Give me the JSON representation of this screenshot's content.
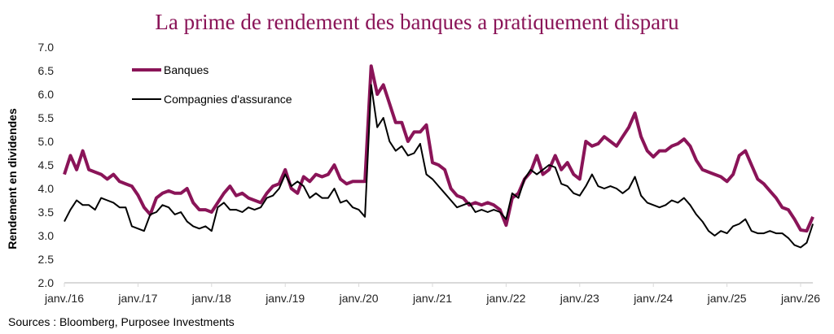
{
  "chart_data": {
    "type": "line",
    "title": "La prime de rendement des banques a pratiquement disparu",
    "xlabel": "",
    "ylabel": "Rendement en dividendes",
    "ylim": [
      2.0,
      7.0
    ],
    "yticks": [
      "2.0",
      "2.5",
      "3.0",
      "3.5",
      "4.0",
      "4.5",
      "5.0",
      "5.5",
      "6.0",
      "6.5",
      "7.0"
    ],
    "xticks": [
      {
        "date": "2016-01",
        "label": "janv./16"
      },
      {
        "date": "2017-01",
        "label": "janv./17"
      },
      {
        "date": "2018-01",
        "label": "janv./18"
      },
      {
        "date": "2019-01",
        "label": "janv./19"
      },
      {
        "date": "2020-01",
        "label": "janv./20"
      },
      {
        "date": "2021-01",
        "label": "janv./21"
      },
      {
        "date": "2022-01",
        "label": "janv./22"
      },
      {
        "date": "2023-01",
        "label": "janv./23"
      },
      {
        "date": "2024-01",
        "label": "janv./24"
      },
      {
        "date": "2025-01",
        "label": "janv./25"
      },
      {
        "date": "2026-01",
        "label": "janv./26"
      }
    ],
    "xlim": [
      "2016-01",
      "2026-03"
    ],
    "grid": false,
    "legend": "top-left",
    "x_start": "2016-01",
    "x_frequency": "monthly",
    "series": [
      {
        "name": "Banques",
        "color": "#8a1458",
        "values": [
          4.3,
          4.7,
          4.4,
          4.8,
          4.4,
          4.35,
          4.3,
          4.2,
          4.3,
          4.15,
          4.1,
          4.05,
          3.86,
          3.6,
          3.45,
          3.8,
          3.9,
          3.95,
          3.9,
          3.9,
          4.0,
          3.7,
          3.55,
          3.55,
          3.5,
          3.7,
          3.9,
          4.05,
          3.85,
          3.9,
          3.8,
          3.75,
          3.7,
          3.9,
          4.05,
          4.1,
          4.4,
          4.0,
          3.9,
          4.25,
          4.15,
          4.3,
          4.25,
          4.3,
          4.5,
          4.2,
          4.1,
          4.15,
          4.15,
          4.15,
          6.6,
          6.0,
          6.2,
          5.8,
          5.4,
          5.4,
          5.0,
          5.2,
          5.2,
          5.35,
          4.55,
          4.5,
          4.4,
          4.0,
          3.85,
          3.8,
          3.65,
          3.7,
          3.65,
          3.7,
          3.65,
          3.55,
          3.22,
          3.8,
          3.9,
          4.2,
          4.35,
          4.7,
          4.3,
          4.4,
          4.7,
          4.4,
          4.55,
          4.3,
          4.2,
          5.0,
          4.9,
          4.95,
          5.1,
          5.0,
          4.9,
          5.1,
          5.3,
          5.6,
          5.1,
          4.8,
          4.67,
          4.8,
          4.8,
          4.9,
          4.95,
          5.05,
          4.9,
          4.6,
          4.4,
          4.35,
          4.3,
          4.25,
          4.15,
          4.3,
          4.7,
          4.8,
          4.5,
          4.2,
          4.1,
          3.95,
          3.8,
          3.6,
          3.55,
          3.35,
          3.12,
          3.1,
          3.4
        ]
      },
      {
        "name": "Compagnies d'assurance",
        "color": "#000000",
        "values": [
          3.3,
          3.55,
          3.75,
          3.65,
          3.65,
          3.55,
          3.8,
          3.75,
          3.7,
          3.6,
          3.6,
          3.2,
          3.15,
          3.1,
          3.45,
          3.5,
          3.65,
          3.6,
          3.45,
          3.5,
          3.3,
          3.2,
          3.15,
          3.2,
          3.1,
          3.6,
          3.7,
          3.55,
          3.55,
          3.5,
          3.6,
          3.55,
          3.6,
          3.8,
          3.85,
          4.0,
          4.3,
          4.05,
          4.15,
          4.05,
          3.8,
          3.9,
          3.8,
          3.8,
          4.0,
          3.7,
          3.75,
          3.6,
          3.55,
          3.4,
          6.2,
          5.3,
          5.5,
          5.0,
          4.8,
          4.9,
          4.7,
          4.75,
          4.95,
          4.3,
          4.2,
          4.05,
          3.9,
          3.75,
          3.6,
          3.65,
          3.7,
          3.5,
          3.55,
          3.5,
          3.55,
          3.5,
          3.35,
          3.9,
          3.8,
          4.2,
          4.4,
          4.3,
          4.4,
          4.5,
          4.45,
          4.1,
          4.05,
          3.9,
          3.85,
          4.05,
          4.3,
          4.05,
          4.0,
          4.05,
          4.0,
          3.9,
          4.0,
          4.25,
          3.85,
          3.7,
          3.65,
          3.6,
          3.65,
          3.75,
          3.7,
          3.8,
          3.65,
          3.45,
          3.3,
          3.1,
          3.0,
          3.1,
          3.05,
          3.2,
          3.25,
          3.35,
          3.1,
          3.05,
          3.05,
          3.1,
          3.05,
          3.05,
          2.95,
          2.8,
          2.75,
          2.85,
          3.25
        ]
      }
    ]
  },
  "footer": {
    "source": "Sources : Bloomberg, Purposee Investments"
  }
}
